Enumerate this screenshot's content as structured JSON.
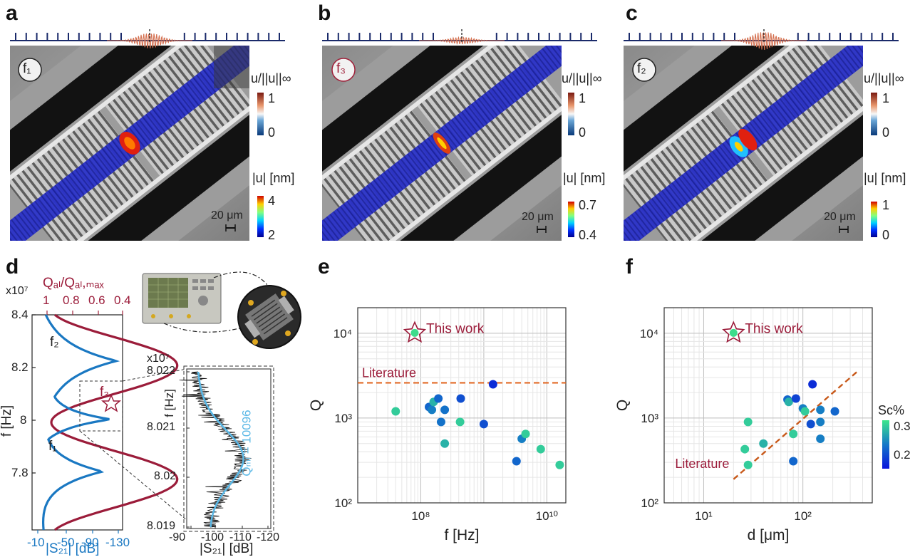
{
  "panels": {
    "a": {
      "letter": "a",
      "mode": "f₁",
      "mode_color": "#222222",
      "cb_top_label": "u/||u||∞",
      "cb_top_max": "1",
      "cb_top_min": "0",
      "cb_bot_label": "|u| [nm]",
      "cb_bot_max": "4",
      "cb_bot_min": "2",
      "scale": "20 μm"
    },
    "b": {
      "letter": "b",
      "mode": "f₃",
      "mode_color": "#a0213a",
      "cb_top_label": "u/||u||∞",
      "cb_top_max": "1",
      "cb_top_min": "0",
      "cb_bot_label": "|u| [nm]",
      "cb_bot_max": "0.7",
      "cb_bot_min": "0.4",
      "scale": "20 μm"
    },
    "c": {
      "letter": "c",
      "mode": "f₂",
      "mode_color": "#222222",
      "cb_top_label": "u/||u||∞",
      "cb_top_max": "1",
      "cb_top_min": "0",
      "cb_bot_label": "|u| [nm]",
      "cb_bot_max": "1",
      "cb_bot_min": "0",
      "scale": "20 μm"
    }
  },
  "panel_d": {
    "letter": "d",
    "top_axis_label": "Qₐₗ/Qₐₗ,ₘₐₓ",
    "top_ticks": [
      "1",
      "0.8",
      "0.6",
      "0.4"
    ],
    "y_exp": "x10⁷",
    "y_ticks": [
      "8.4",
      "8.2",
      "8",
      "7.8"
    ],
    "ylabel": "f [Hz]",
    "x_ticks": [
      "-10",
      "-50",
      "-90",
      "-130"
    ],
    "xlabel": "|S₂₁| [dB]",
    "mode_labels": [
      "f₂",
      "f₃",
      "f₁"
    ],
    "inset": {
      "y_exp": "x10⁷",
      "y_ticks": [
        "8.022",
        "8.021",
        "8.02",
        "8.019"
      ],
      "ylabel": "f [Hz]",
      "x_ticks": [
        "-90",
        "-100",
        "-110",
        "-120"
      ],
      "xlabel": "|S₂₁| [dB]",
      "q_label": "Qₘₗ = 10096"
    }
  },
  "chart_data": [
    {
      "type": "scatter",
      "panel": "e",
      "xlabel": "f [Hz]",
      "ylabel": "Q",
      "x_log": true,
      "y_log": true,
      "xlim": [
        10000000.0,
        20000000000.0
      ],
      "ylim": [
        100,
        20000
      ],
      "x_ticks": [
        "10⁸",
        "10¹⁰"
      ],
      "y_ticks": [
        "10²",
        "10³",
        "10⁴"
      ],
      "grid": true,
      "annotation": "This work",
      "reference_line": {
        "label": "Literature",
        "y": 2600
      },
      "this_work": {
        "x": 80200000.0,
        "y": 10096
      },
      "points": [
        {
          "x": 40000000.0,
          "y": 1200,
          "sc": 0.3
        },
        {
          "x": 135000000.0,
          "y": 1350,
          "sc": 0.22
        },
        {
          "x": 150000000.0,
          "y": 1250,
          "sc": 0.24
        },
        {
          "x": 160000000.0,
          "y": 1550,
          "sc": 0.28
        },
        {
          "x": 190000000.0,
          "y": 1700,
          "sc": 0.22
        },
        {
          "x": 210000000.0,
          "y": 900,
          "sc": 0.23
        },
        {
          "x": 240000000.0,
          "y": 1250,
          "sc": 0.23
        },
        {
          "x": 240000000.0,
          "y": 500,
          "sc": 0.28
        },
        {
          "x": 430000000.0,
          "y": 1700,
          "sc": 0.2
        },
        {
          "x": 420000000.0,
          "y": 900,
          "sc": 0.3
        },
        {
          "x": 1000000000.0,
          "y": 850,
          "sc": 0.2
        },
        {
          "x": 1400000000.0,
          "y": 2500,
          "sc": 0.17
        },
        {
          "x": 3300000000.0,
          "y": 310,
          "sc": 0.22
        },
        {
          "x": 4000000000.0,
          "y": 570,
          "sc": 0.24
        },
        {
          "x": 4600000000.0,
          "y": 650,
          "sc": 0.3
        },
        {
          "x": 8000000000.0,
          "y": 430,
          "sc": 0.3
        },
        {
          "x": 16000000000.0,
          "y": 280,
          "sc": 0.3
        }
      ]
    },
    {
      "type": "scatter",
      "panel": "f",
      "xlabel": "d [μm]",
      "ylabel": "Q",
      "x_log": true,
      "y_log": true,
      "xlim": [
        4,
        500
      ],
      "ylim": [
        100,
        20000
      ],
      "x_ticks": [
        "10¹",
        "10²"
      ],
      "y_ticks": [
        "10²",
        "10³",
        "10⁴"
      ],
      "grid": true,
      "annotation": "This work",
      "reference_line": {
        "label": "Literature",
        "x0": 20,
        "y0": 190,
        "x1": 350,
        "y1": 3500
      },
      "this_work": {
        "x": 20,
        "y": 10096
      },
      "colorbar": {
        "label": "Sc%",
        "ticks": [
          "0.3",
          "0.2"
        ],
        "min": 0.15,
        "max": 0.32
      },
      "points": [
        {
          "x": 28,
          "y": 900,
          "sc": 0.3
        },
        {
          "x": 26,
          "y": 430,
          "sc": 0.3
        },
        {
          "x": 28,
          "y": 280,
          "sc": 0.3
        },
        {
          "x": 40,
          "y": 500,
          "sc": 0.28
        },
        {
          "x": 70,
          "y": 1650,
          "sc": 0.22
        },
        {
          "x": 72,
          "y": 1550,
          "sc": 0.28
        },
        {
          "x": 85,
          "y": 1700,
          "sc": 0.19
        },
        {
          "x": 80,
          "y": 650,
          "sc": 0.3
        },
        {
          "x": 80,
          "y": 310,
          "sc": 0.22
        },
        {
          "x": 100,
          "y": 1300,
          "sc": 0.24
        },
        {
          "x": 105,
          "y": 1200,
          "sc": 0.3
        },
        {
          "x": 120,
          "y": 850,
          "sc": 0.2
        },
        {
          "x": 125,
          "y": 2500,
          "sc": 0.17
        },
        {
          "x": 150,
          "y": 1250,
          "sc": 0.24
        },
        {
          "x": 150,
          "y": 900,
          "sc": 0.24
        },
        {
          "x": 150,
          "y": 570,
          "sc": 0.24
        },
        {
          "x": 210,
          "y": 1200,
          "sc": 0.22
        }
      ]
    }
  ]
}
